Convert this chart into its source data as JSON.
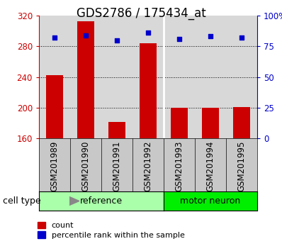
{
  "title": "GDS2786 / 175434_at",
  "categories": [
    "GSM201989",
    "GSM201990",
    "GSM201991",
    "GSM201992",
    "GSM201993",
    "GSM201994",
    "GSM201995"
  ],
  "bar_values": [
    242,
    313,
    181,
    284,
    200,
    200,
    201
  ],
  "percentile_values": [
    82,
    84,
    80,
    86,
    81,
    83,
    82
  ],
  "bar_color": "#cc0000",
  "dot_color": "#0000cc",
  "bar_bottom": 160,
  "ylim_left": [
    160,
    320
  ],
  "ylim_right": [
    0,
    100
  ],
  "yticks_left": [
    160,
    200,
    240,
    280,
    320
  ],
  "yticks_right": [
    0,
    25,
    50,
    75,
    100
  ],
  "grid_values": [
    200,
    240,
    280
  ],
  "ref_color": "#aaffaa",
  "mn_color": "#00ee00",
  "ref_label": "reference",
  "mn_label": "motor neuron",
  "n_ref": 4,
  "n_mn": 3,
  "cell_type_label": "cell type",
  "legend_count_label": "count",
  "legend_percentile_label": "percentile rank within the sample",
  "background_color": "#ffffff",
  "plot_bg_color": "#d8d8d8",
  "xtick_bg_color": "#c8c8c8",
  "left_tick_color": "#cc0000",
  "right_tick_color": "#0000cc",
  "title_fontsize": 12,
  "tick_fontsize": 8.5,
  "label_fontsize": 9,
  "legend_fontsize": 8
}
